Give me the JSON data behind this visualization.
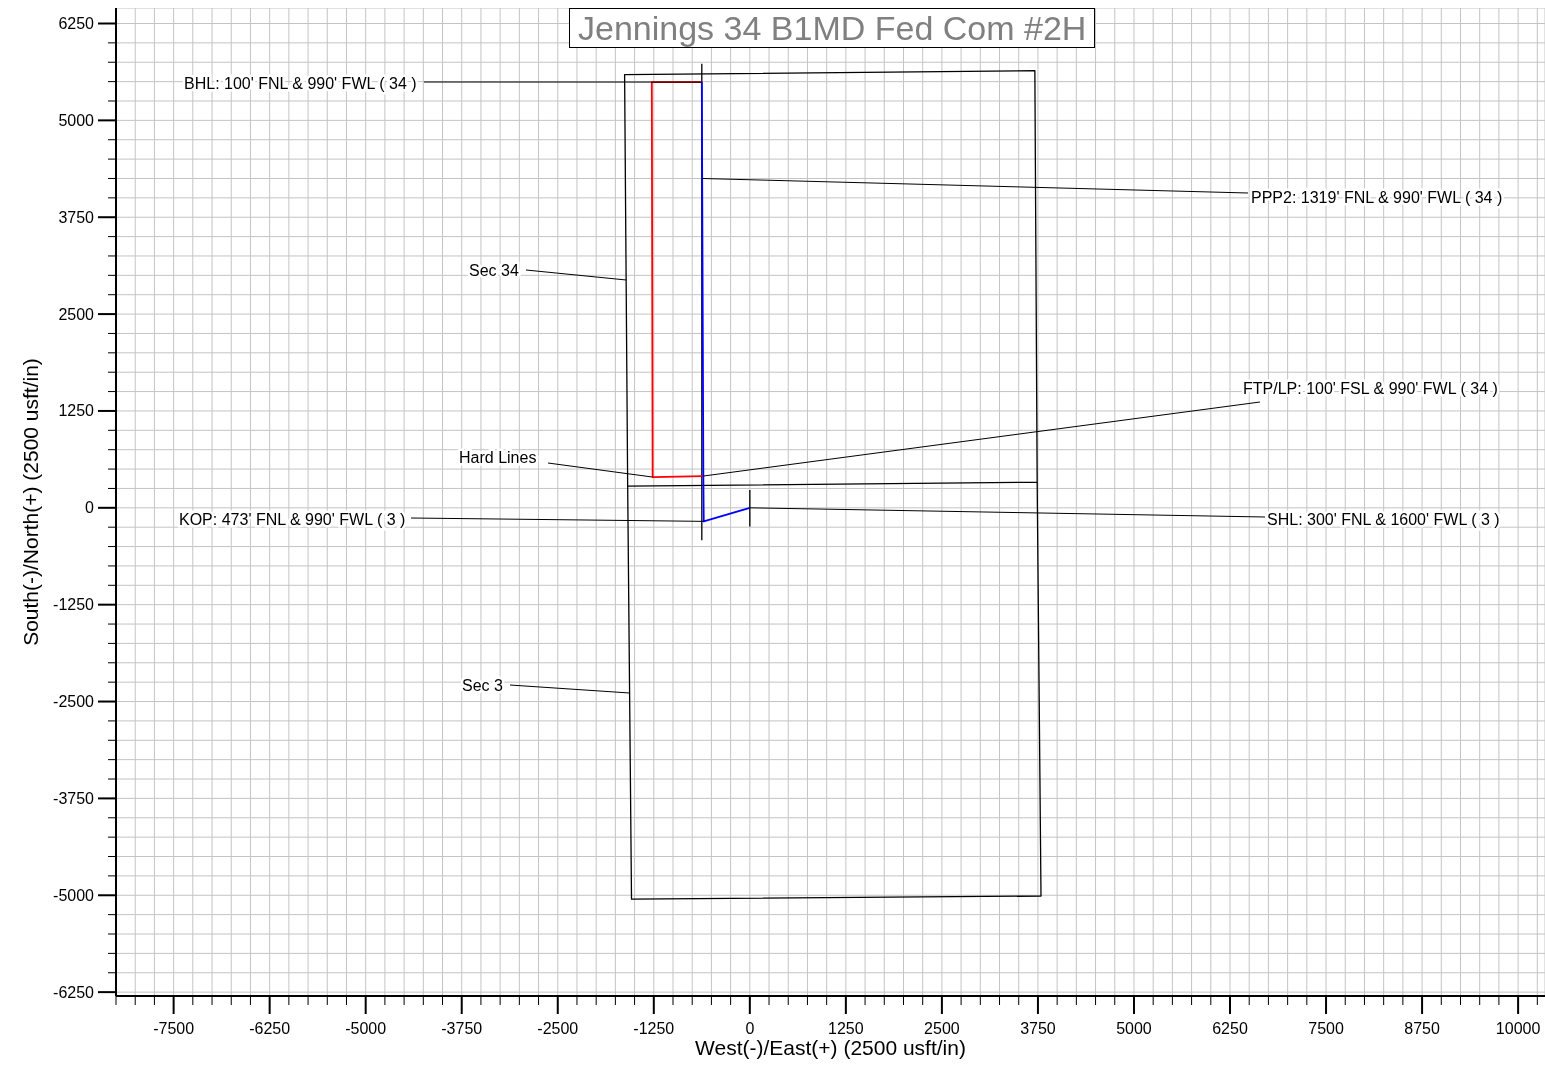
{
  "chart_data": {
    "type": "line",
    "title": "Jennings 34 B1MD Fed Com #2H",
    "xlabel": "West(-)/East(+) (2500 usft/in)",
    "ylabel": "South(-)/North(+) (2500 usft/in)",
    "xlim": [
      -8250,
      10350
    ],
    "ylim": [
      -6300,
      6450
    ],
    "xticks": [
      {
        "value": -8250,
        "label": null
      },
      {
        "value": -8000,
        "label": null
      },
      {
        "value": -7750,
        "label": null
      },
      -7500,
      {
        "value": -7250,
        "label": null
      },
      {
        "value": -7000,
        "label": null
      },
      {
        "value": -6750,
        "label": null
      },
      {
        "value": -6500,
        "label": null
      },
      -6250,
      {
        "value": -6000,
        "label": null
      },
      {
        "value": -5750,
        "label": null
      },
      {
        "value": -5500,
        "label": null
      },
      {
        "value": -5250,
        "label": null
      },
      -5000,
      {
        "value": -4750,
        "label": null
      },
      {
        "value": -4500,
        "label": null
      },
      {
        "value": -4250,
        "label": null
      },
      {
        "value": -4000,
        "label": null
      },
      -3750,
      {
        "value": -3500,
        "label": null
      },
      {
        "value": -3250,
        "label": null
      },
      {
        "value": -3000,
        "label": null
      },
      {
        "value": -2750,
        "label": null
      },
      -2500,
      {
        "value": -2250,
        "label": null
      },
      {
        "value": -2000,
        "label": null
      },
      {
        "value": -1750,
        "label": null
      },
      {
        "value": -1500,
        "label": null
      },
      -1250,
      {
        "value": -1000,
        "label": null
      },
      {
        "value": -750,
        "label": null
      },
      {
        "value": -500,
        "label": null
      },
      {
        "value": -250,
        "label": null
      },
      0,
      {
        "value": 250,
        "label": null
      },
      {
        "value": 500,
        "label": null
      },
      {
        "value": 750,
        "label": null
      },
      {
        "value": 1000,
        "label": null
      },
      1250,
      {
        "value": 1500,
        "label": null
      },
      {
        "value": 1750,
        "label": null
      },
      {
        "value": 2000,
        "label": null
      },
      {
        "value": 2250,
        "label": null
      },
      2500,
      {
        "value": 2750,
        "label": null
      },
      {
        "value": 3000,
        "label": null
      },
      {
        "value": 3250,
        "label": null
      },
      {
        "value": 3500,
        "label": null
      },
      3750,
      {
        "value": 4000,
        "label": null
      },
      {
        "value": 4250,
        "label": null
      },
      {
        "value": 4500,
        "label": null
      },
      {
        "value": 4750,
        "label": null
      },
      5000,
      {
        "value": 5250,
        "label": null
      },
      {
        "value": 5500,
        "label": null
      },
      {
        "value": 5750,
        "label": null
      },
      {
        "value": 6000,
        "label": null
      },
      6250,
      {
        "value": 6500,
        "label": null
      },
      {
        "value": 6750,
        "label": null
      },
      {
        "value": 7000,
        "label": null
      },
      {
        "value": 7250,
        "label": null
      },
      7500,
      {
        "value": 7750,
        "label": null
      },
      {
        "value": 8000,
        "label": null
      },
      {
        "value": 8250,
        "label": null
      },
      {
        "value": 8500,
        "label": null
      },
      8750,
      {
        "value": 9000,
        "label": null
      },
      {
        "value": 9250,
        "label": null
      },
      {
        "value": 9500,
        "label": null
      },
      {
        "value": 9750,
        "label": null
      },
      10000,
      {
        "value": 10250,
        "label": null
      }
    ],
    "yticks": [
      -6250,
      {
        "value": -6000,
        "label": null
      },
      {
        "value": -5750,
        "label": null
      },
      {
        "value": -5500,
        "label": null
      },
      {
        "value": -5250,
        "label": null
      },
      -5000,
      {
        "value": -4750,
        "label": null
      },
      {
        "value": -4500,
        "label": null
      },
      {
        "value": -4250,
        "label": null
      },
      {
        "value": -4000,
        "label": null
      },
      -3750,
      {
        "value": -3500,
        "label": null
      },
      {
        "value": -3250,
        "label": null
      },
      {
        "value": -3000,
        "label": null
      },
      {
        "value": -2750,
        "label": null
      },
      -2500,
      {
        "value": -2250,
        "label": null
      },
      {
        "value": -2000,
        "label": null
      },
      {
        "value": -1750,
        "label": null
      },
      {
        "value": -1500,
        "label": null
      },
      -1250,
      {
        "value": -1000,
        "label": null
      },
      {
        "value": -750,
        "label": null
      },
      {
        "value": -500,
        "label": null
      },
      {
        "value": -250,
        "label": null
      },
      0,
      {
        "value": 250,
        "label": null
      },
      {
        "value": 500,
        "label": null
      },
      {
        "value": 750,
        "label": null
      },
      {
        "value": 1000,
        "label": null
      },
      1250,
      {
        "value": 1500,
        "label": null
      },
      {
        "value": 1750,
        "label": null
      },
      {
        "value": 2000,
        "label": null
      },
      {
        "value": 2250,
        "label": null
      },
      2500,
      {
        "value": 2750,
        "label": null
      },
      {
        "value": 3000,
        "label": null
      },
      {
        "value": 3250,
        "label": null
      },
      {
        "value": 3500,
        "label": null
      },
      3750,
      {
        "value": 4000,
        "label": null
      },
      {
        "value": 4250,
        "label": null
      },
      {
        "value": 4500,
        "label": null
      },
      {
        "value": 4750,
        "label": null
      },
      5000,
      {
        "value": 5250,
        "label": null
      },
      {
        "value": 5500,
        "label": null
      },
      {
        "value": 5750,
        "label": null
      },
      {
        "value": 6000,
        "label": null
      },
      6250
    ],
    "grid": true,
    "marker": "none",
    "line_style": "solid",
    "series": [
      {
        "color": "#000000",
        "x": [
          -1590,
          -1630,
          3710,
          3740,
          3790,
          -1540,
          -1590,
          3740
        ],
        "values": [
          280,
          5590,
          5640,
          330,
          -5010,
          -5050,
          280,
          330
        ]
      },
      {
        "color": "#000000",
        "x": [
          -625,
          -625
        ],
        "values": [
          5730,
          -420
        ]
      },
      {
        "color": "#000000",
        "x": [
          0,
          0
        ],
        "values": [
          230,
          -240
        ]
      },
      {
        "color": "#ff0000",
        "x": [
          -605,
          -1265,
          -1276,
          -625
        ],
        "values": [
          410,
          397,
          5494,
          5494
        ]
      },
      {
        "color": "#0000ff",
        "x": [
          0,
          -600,
          -605,
          -625
        ],
        "values": [
          0,
          -175,
          410,
          5494
        ]
      }
    ],
    "annotations": [
      {
        "text": "BHL: 100' FNL & 990' FWL ( 34 )",
        "x": -625,
        "y": 5494
      },
      {
        "text": "PPP2: 1319' FNL & 990' FWL ( 34 )",
        "x": -620,
        "y": 4250
      },
      {
        "text": "Sec 34",
        "x": -1610,
        "y": 2940
      },
      {
        "text": "FTP/LP: 100' FSL & 990' FWL ( 34 )",
        "x": -605,
        "y": 410
      },
      {
        "text": "Hard Lines",
        "x": -1265,
        "y": 397
      },
      {
        "text": "KOP: 473' FNL & 990' FWL ( 3 )",
        "x": -600,
        "y": -175
      },
      {
        "text": "SHL: 300' FNL & 1600' FWL ( 3 )",
        "x": 0,
        "y": 0
      },
      {
        "text": "Sec 3",
        "x": -1565,
        "y": -2390
      }
    ]
  }
}
